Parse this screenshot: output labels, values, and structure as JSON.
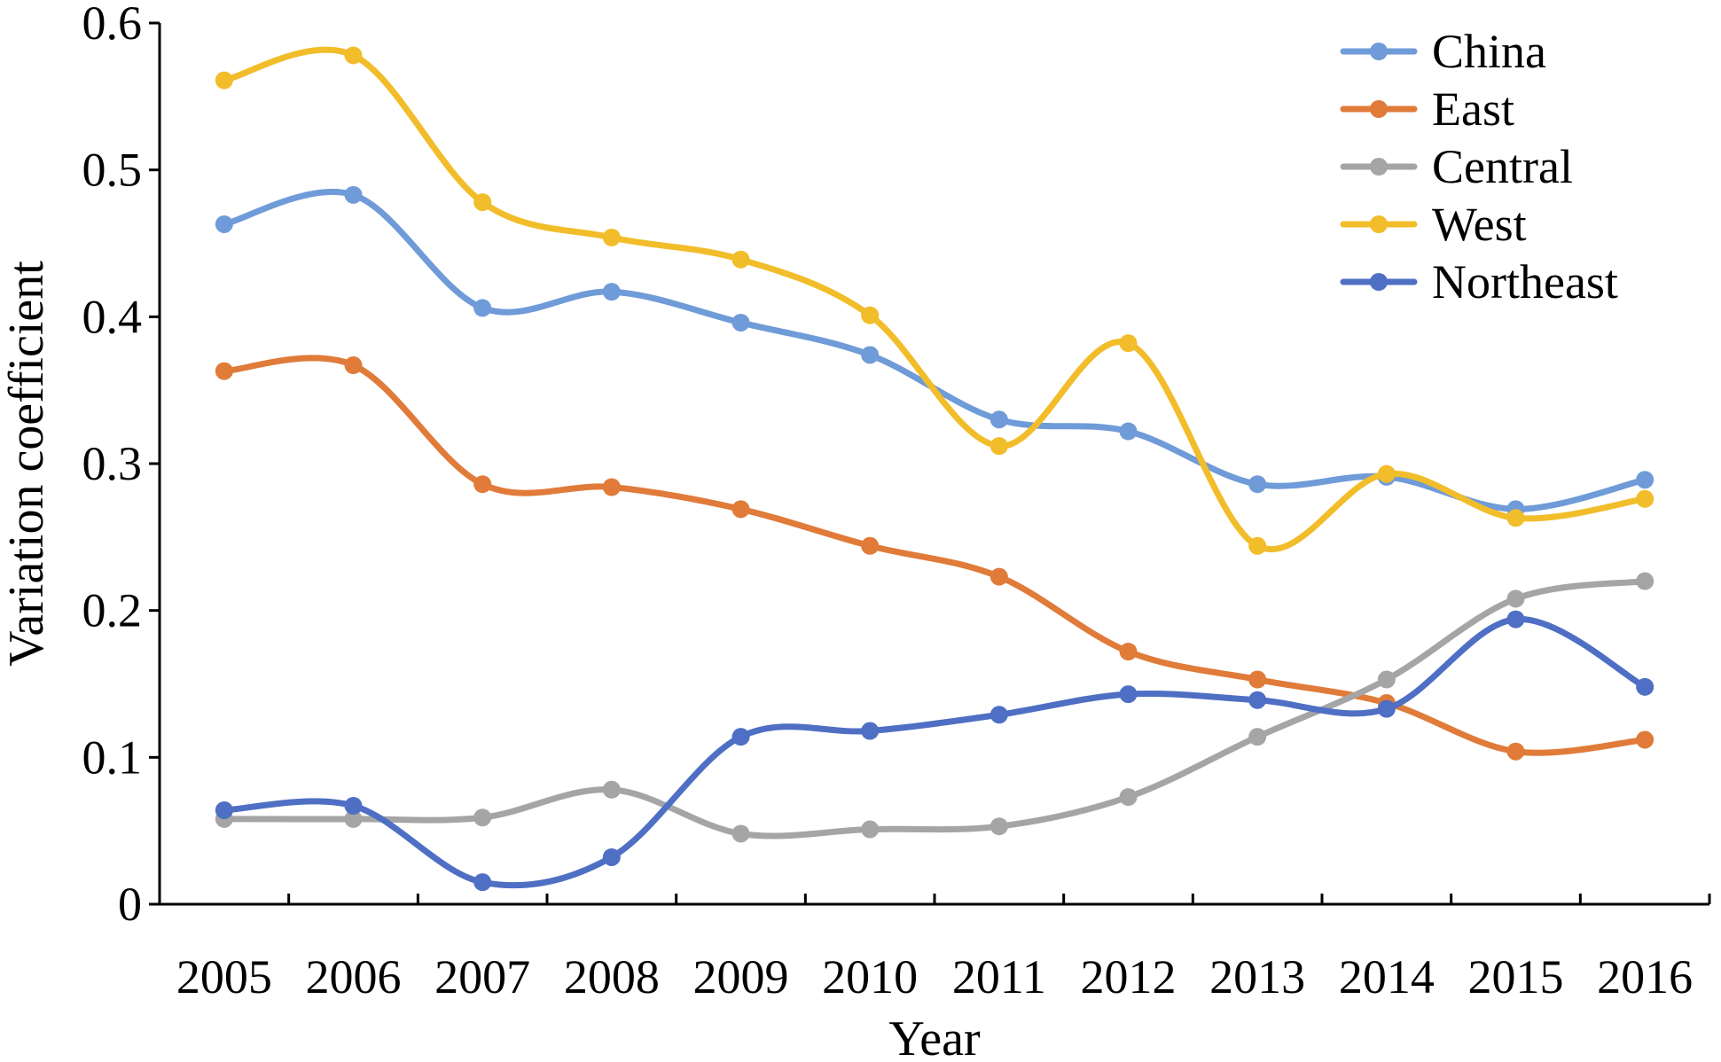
{
  "chart_data": {
    "type": "line",
    "smooth": true,
    "categories": [
      "2005",
      "2006",
      "2007",
      "2008",
      "2009",
      "2010",
      "2011",
      "2012",
      "2013",
      "2014",
      "2015",
      "2016"
    ],
    "series": [
      {
        "name": "China",
        "color": "#6f9bd8",
        "values": [
          0.463,
          0.483,
          0.406,
          0.417,
          0.396,
          0.374,
          0.33,
          0.322,
          0.286,
          0.291,
          0.269,
          0.289
        ]
      },
      {
        "name": "East",
        "color": "#e07b39",
        "values": [
          0.363,
          0.367,
          0.286,
          0.284,
          0.269,
          0.244,
          0.223,
          0.172,
          0.153,
          0.137,
          0.104,
          0.112
        ]
      },
      {
        "name": "Central",
        "color": "#a5a5a5",
        "values": [
          0.058,
          0.058,
          0.059,
          0.078,
          0.048,
          0.051,
          0.053,
          0.073,
          0.114,
          0.153,
          0.208,
          0.22
        ]
      },
      {
        "name": "West",
        "color": "#f2bd2a",
        "values": [
          0.561,
          0.578,
          0.478,
          0.454,
          0.439,
          0.401,
          0.312,
          0.382,
          0.244,
          0.293,
          0.263,
          0.276
        ]
      },
      {
        "name": "Northeast",
        "color": "#4e6fc3",
        "values": [
          0.064,
          0.067,
          0.015,
          0.032,
          0.114,
          0.118,
          0.129,
          0.143,
          0.139,
          0.133,
          0.194,
          0.148
        ]
      }
    ],
    "title": "",
    "xlabel": "Year",
    "ylabel": "Variation coefficient",
    "ylim": [
      0,
      0.6
    ],
    "yticks": [
      "0",
      "0.1",
      "0.2",
      "0.3",
      "0.4",
      "0.5",
      "0.6"
    ],
    "grid": false,
    "legend_position": "top-right"
  }
}
